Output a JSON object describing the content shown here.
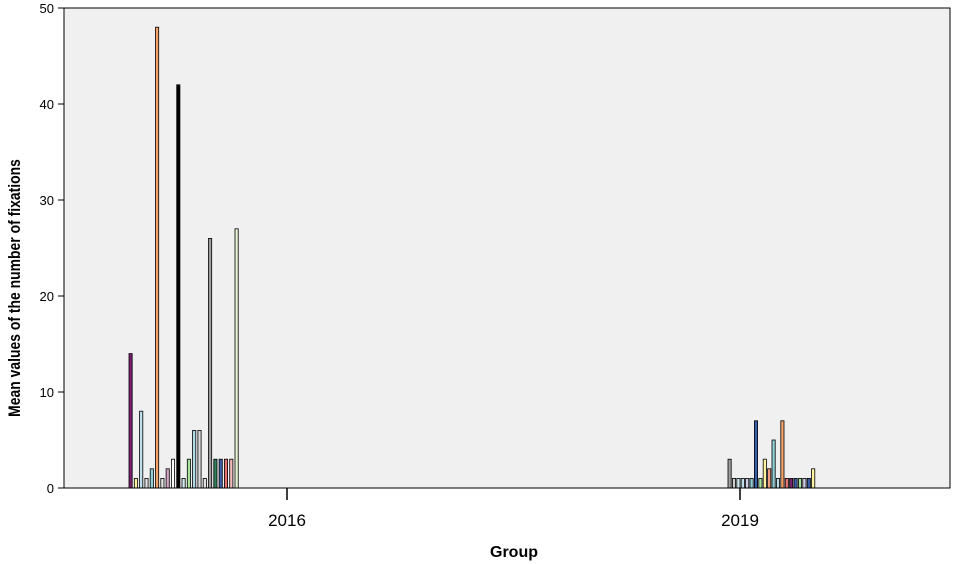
{
  "chart_data": {
    "type": "bar",
    "title": "",
    "xlabel": "Group",
    "ylabel": "Mean values of the number of fixations",
    "ylim": [
      0,
      50
    ],
    "yticks": [
      0,
      10,
      20,
      30,
      40,
      50
    ],
    "categories": [
      "2016",
      "2019"
    ],
    "grid": false,
    "legend": "none",
    "background_color": "#f0f0f0",
    "groups": [
      {
        "category": "2016",
        "bars": [
          {
            "value": 14,
            "color": "#7a1f6e"
          },
          {
            "value": 1,
            "color": "#fff3a0"
          },
          {
            "value": 8,
            "color": "#bfe0ea"
          },
          {
            "value": 1,
            "color": "#e3e3e3"
          },
          {
            "value": 2,
            "color": "#8fd0d8"
          },
          {
            "value": 48,
            "color": "#f3a36a"
          },
          {
            "value": 1,
            "color": "#e3e3e3"
          },
          {
            "value": 2,
            "color": "#d4a5c7"
          },
          {
            "value": 3,
            "color": "#ffffff"
          },
          {
            "value": 42,
            "color": "#000000"
          },
          {
            "value": 1,
            "color": "#cfeaf0"
          },
          {
            "value": 3,
            "color": "#a8e6a0"
          },
          {
            "value": 6,
            "color": "#b0d8e8"
          },
          {
            "value": 6,
            "color": "#d9d9d9"
          },
          {
            "value": 1,
            "color": "#e3e3e3"
          },
          {
            "value": 26,
            "color": "#9e9e9e"
          },
          {
            "value": 3,
            "color": "#2e7d5b"
          },
          {
            "value": 3,
            "color": "#3b5ea8"
          },
          {
            "value": 3,
            "color": "#e57373"
          },
          {
            "value": 3,
            "color": "#f2b8b8"
          },
          {
            "value": 27,
            "color": "#e6f5d0"
          }
        ]
      },
      {
        "category": "2019",
        "bars": [
          {
            "value": 3,
            "color": "#9e9e9e"
          },
          {
            "value": 1,
            "color": "#d0d0d0"
          },
          {
            "value": 1,
            "color": "#cfeaf0"
          },
          {
            "value": 1,
            "color": "#bfe0ea"
          },
          {
            "value": 1,
            "color": "#d4cfe8"
          },
          {
            "value": 1,
            "color": "#8fd0d8"
          },
          {
            "value": 7,
            "color": "#3b5ea8"
          },
          {
            "value": 1,
            "color": "#a8e6a0"
          },
          {
            "value": 3,
            "color": "#fff3a0"
          },
          {
            "value": 2,
            "color": "#f0a080"
          },
          {
            "value": 5,
            "color": "#8fd0d8"
          },
          {
            "value": 1,
            "color": "#bfe0ea"
          },
          {
            "value": 7,
            "color": "#f3a36a"
          },
          {
            "value": 1,
            "color": "#e57373"
          },
          {
            "value": 1,
            "color": "#7a1f6e"
          },
          {
            "value": 1,
            "color": "#3b5ea8"
          },
          {
            "value": 1,
            "color": "#a8e6a0"
          },
          {
            "value": 1,
            "color": "#d4cfe8"
          },
          {
            "value": 1,
            "color": "#3b5ea8"
          },
          {
            "value": 2,
            "color": "#fff3a0"
          }
        ]
      }
    ]
  }
}
